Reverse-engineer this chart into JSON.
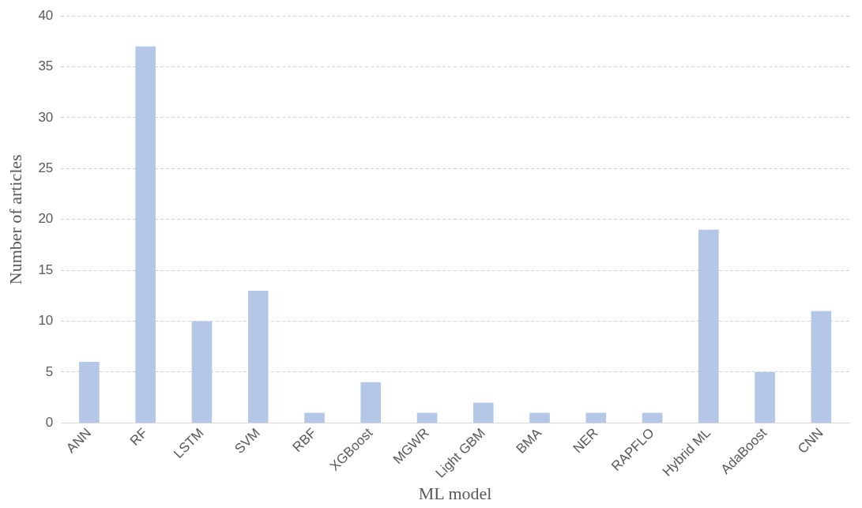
{
  "chart_data": {
    "type": "bar",
    "xlabel": "ML model",
    "ylabel": "Number of articles",
    "categories": [
      "ANN",
      "RF",
      "LSTM",
      "SVM",
      "RBF",
      "XGBoost",
      "MGWR",
      "Light GBM",
      "BMA",
      "NER",
      "RAPFLO",
      "Hybrid ML",
      "AdaBoost",
      "CNN"
    ],
    "values": [
      6,
      37,
      10,
      13,
      1,
      4,
      1,
      2,
      1,
      1,
      1,
      19,
      5,
      11
    ],
    "color": "#b4c7e7",
    "ylim": [
      0,
      40
    ],
    "yticks": [
      0,
      5,
      10,
      15,
      20,
      25,
      30,
      35,
      40
    ],
    "grid": "y",
    "legend": false
  }
}
